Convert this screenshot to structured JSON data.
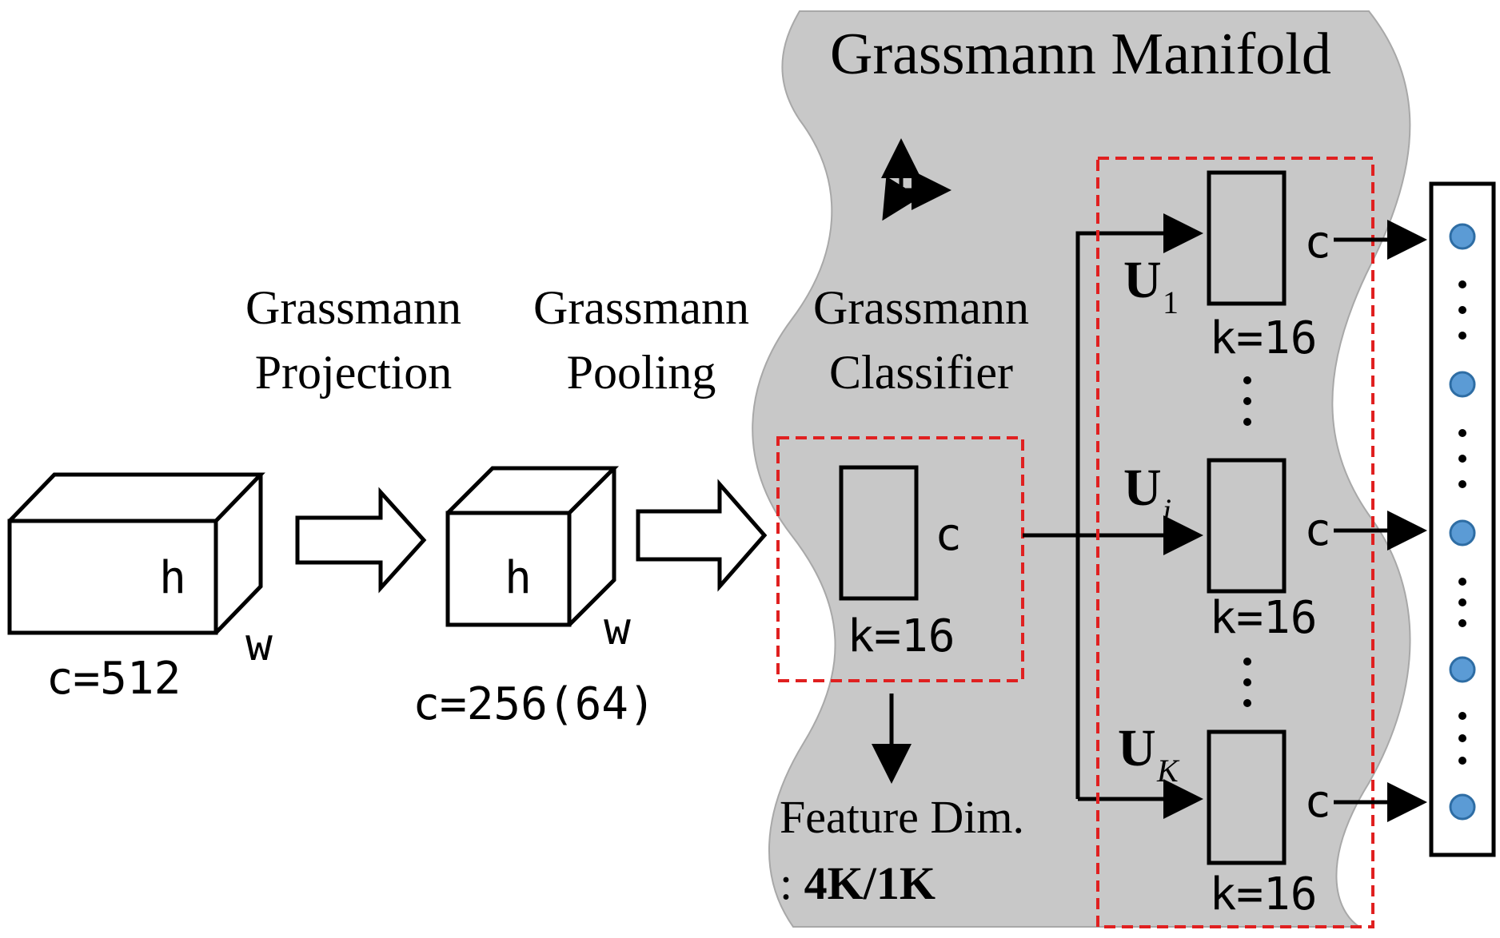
{
  "manifold": {
    "title": "Grassmann Manifold",
    "fill_color": "#c8c8c8"
  },
  "stages": {
    "projection": {
      "line1": "Grassmann",
      "line2": "Projection"
    },
    "pooling": {
      "line1": "Grassmann",
      "line2": "Pooling"
    },
    "classifier": {
      "line1": "Grassmann",
      "line2": "Classifier"
    }
  },
  "tensors": {
    "input": {
      "height_label": "h",
      "width_label": "w",
      "channel_label": "c=512"
    },
    "pooled": {
      "height_label": "h",
      "width_label": "w",
      "channel_label": "c=256(64)"
    }
  },
  "subspace": {
    "dim_label": "c",
    "k_label": "k=16"
  },
  "feature_dim": {
    "line1": "Feature Dim.",
    "prefix": ": ",
    "value": "4K/1K"
  },
  "class_subspaces": [
    {
      "symbol": "U",
      "index": "1",
      "dim_label": "c",
      "k_label": "k=16"
    },
    {
      "symbol": "U",
      "index": "i",
      "dim_label": "c",
      "k_label": "k=16"
    },
    {
      "symbol": "U",
      "index": "K",
      "dim_label": "c",
      "k_label": "k=16"
    }
  ],
  "colors": {
    "dashed_box": "#e02020",
    "node_fill": "#5b9bd5",
    "node_stroke": "#2e6da4"
  },
  "icons": {
    "axes": "coordinate-axes-icon",
    "flow_arrow": "hollow-arrow-icon"
  }
}
